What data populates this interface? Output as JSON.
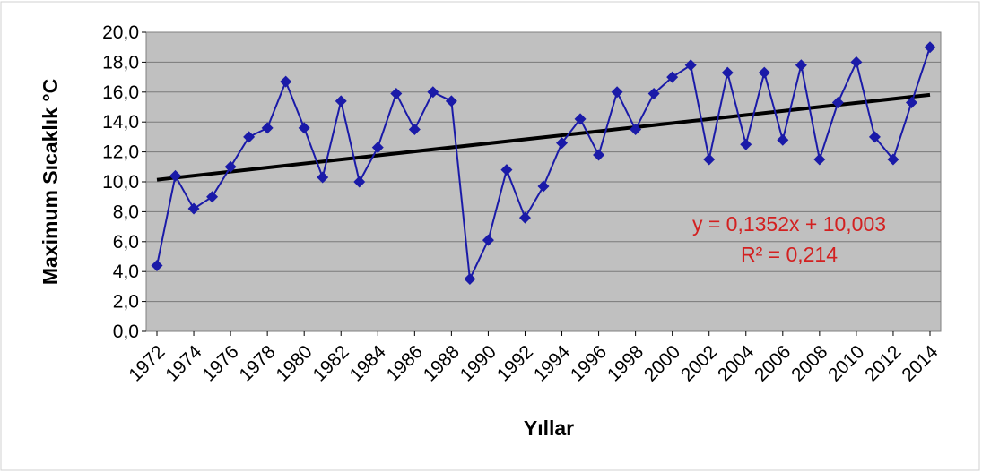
{
  "chart_data": {
    "type": "line",
    "title": "",
    "xlabel": "Yıllar",
    "ylabel": "Maximum Sıcaklık °C",
    "ylim": [
      0,
      20
    ],
    "y_ticks": [
      "0,0",
      "2,0",
      "4,0",
      "6,0",
      "8,0",
      "10,0",
      "12,0",
      "14,0",
      "16,0",
      "18,0",
      "20,0"
    ],
    "x_ticks": [
      "1972",
      "1974",
      "1976",
      "1978",
      "1980",
      "1982",
      "1984",
      "1986",
      "1988",
      "1990",
      "1992",
      "1994",
      "1996",
      "1998",
      "2000",
      "2002",
      "2004",
      "2006",
      "2008",
      "2010",
      "2012",
      "2014"
    ],
    "grid": true,
    "legend": "none",
    "colors": {
      "plot_background": "#c0c0c0",
      "series": "#1a1aa8",
      "trendline": "#000000",
      "equation": "#d32020"
    },
    "x": [
      1972,
      1973,
      1974,
      1975,
      1976,
      1977,
      1978,
      1979,
      1980,
      1981,
      1982,
      1983,
      1984,
      1985,
      1986,
      1987,
      1988,
      1989,
      1990,
      1991,
      1992,
      1993,
      1994,
      1995,
      1996,
      1997,
      1998,
      1999,
      2000,
      2001,
      2002,
      2003,
      2004,
      2005,
      2006,
      2007,
      2008,
      2009,
      2010,
      2011,
      2012,
      2013,
      2014
    ],
    "series": [
      {
        "values": [
          4.4,
          10.4,
          8.2,
          9.0,
          11.0,
          13.0,
          13.6,
          16.7,
          13.6,
          10.3,
          15.4,
          10.0,
          12.3,
          15.9,
          13.5,
          16.0,
          15.4,
          3.5,
          6.1,
          10.8,
          7.6,
          9.7,
          12.6,
          14.2,
          11.8,
          16.0,
          13.5,
          15.9,
          17.0,
          17.8,
          11.5,
          17.3,
          12.5,
          17.3,
          12.8,
          17.8,
          11.5,
          15.3,
          18.0,
          13.0,
          11.5,
          15.3,
          19.0
        ]
      }
    ],
    "trendline": {
      "slope": 0.1352,
      "intercept": 10.003,
      "equation": "y = 0,1352x + 10,003",
      "r2": "R² = 0,214"
    }
  }
}
